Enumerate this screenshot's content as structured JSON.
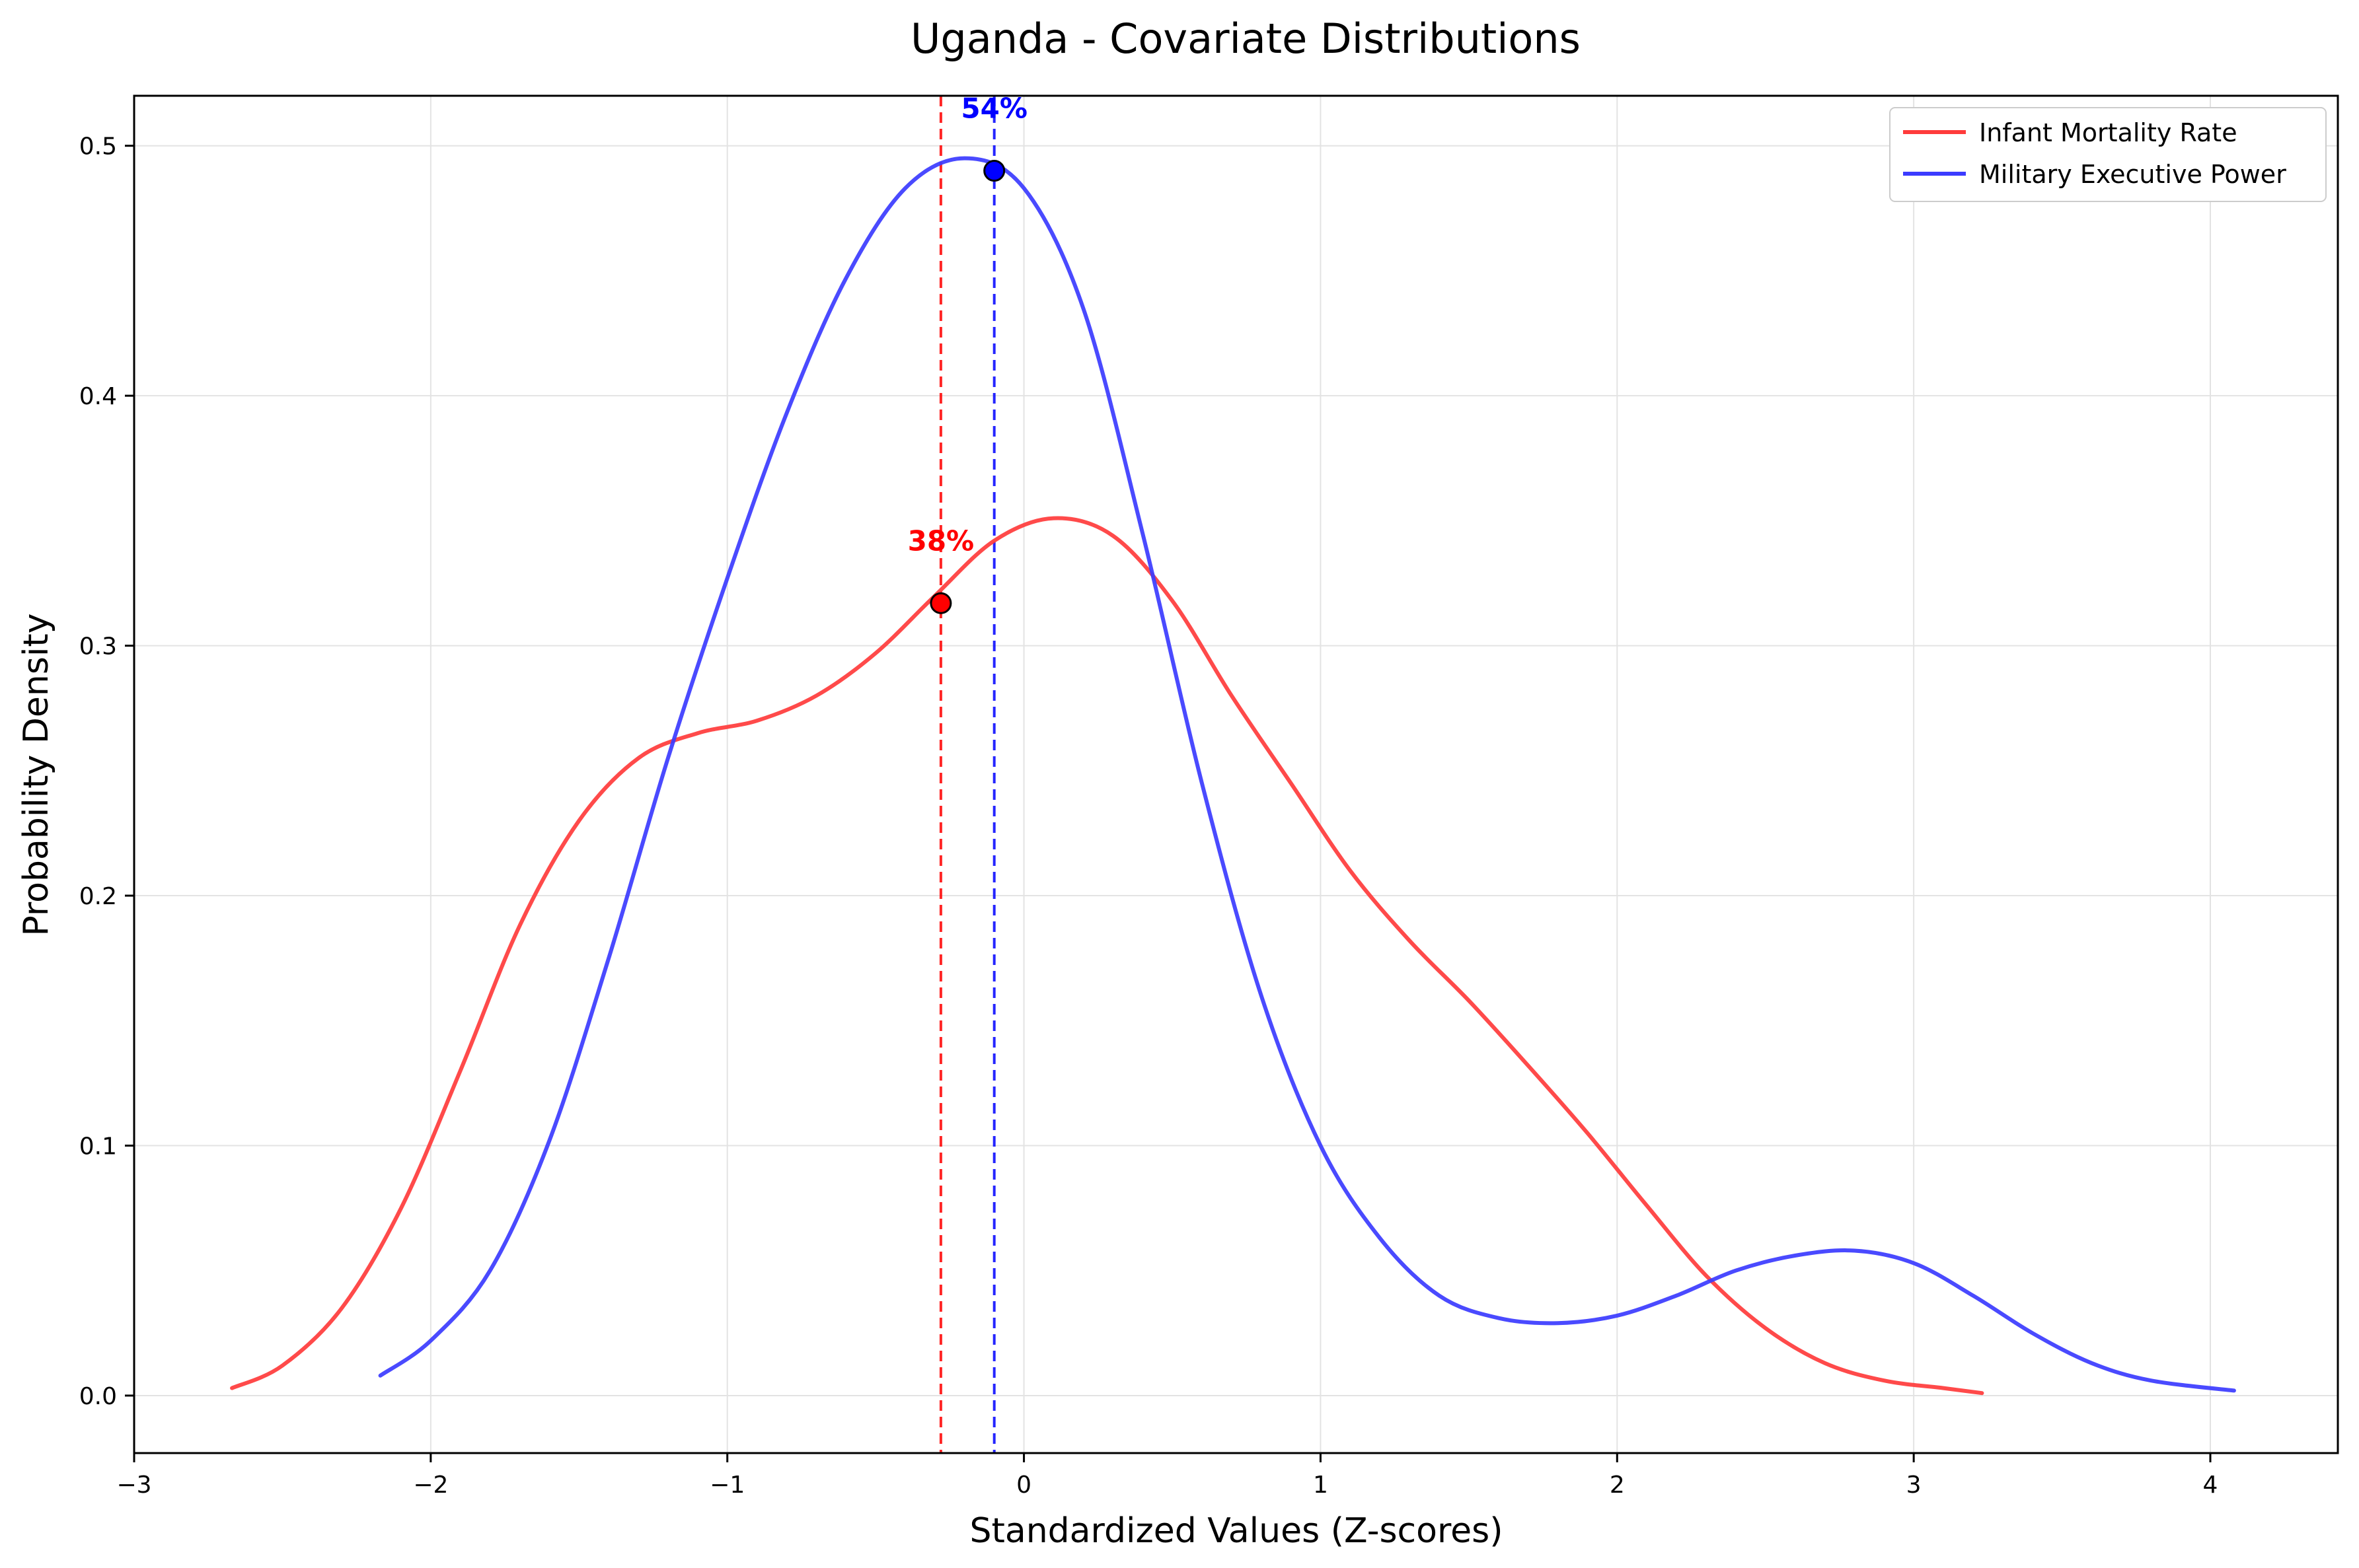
{
  "chart_data": {
    "type": "line",
    "title": "Uganda - Covariate Distributions",
    "xlabel": "Standardized Values (Z-scores)",
    "ylabel": "Probability Density",
    "xlim": [
      -3.0,
      4.43
    ],
    "ylim": [
      -0.023,
      0.52
    ],
    "xticks": [
      -3,
      -2,
      -1,
      0,
      1,
      2,
      3,
      4
    ],
    "xtick_labels": [
      "−3",
      "−2",
      "−1",
      "0",
      "1",
      "2",
      "3",
      "4"
    ],
    "yticks": [
      0.0,
      0.1,
      0.2,
      0.3,
      0.4,
      0.5
    ],
    "ytick_labels": [
      "0.0",
      "0.1",
      "0.2",
      "0.3",
      "0.4",
      "0.5"
    ],
    "grid": true,
    "legend_position": "top-right",
    "series": [
      {
        "name": "Infant Mortality Rate",
        "color": "#ff3b3b",
        "x": [
          -2.67,
          -2.5,
          -2.3,
          -2.1,
          -1.9,
          -1.7,
          -1.5,
          -1.3,
          -1.1,
          -0.9,
          -0.7,
          -0.5,
          -0.3,
          -0.1,
          0.1,
          0.3,
          0.5,
          0.7,
          0.9,
          1.1,
          1.3,
          1.5,
          1.7,
          1.9,
          2.1,
          2.3,
          2.5,
          2.7,
          2.9,
          3.1,
          3.23
        ],
        "y": [
          0.003,
          0.012,
          0.035,
          0.075,
          0.13,
          0.188,
          0.23,
          0.255,
          0.265,
          0.27,
          0.28,
          0.297,
          0.32,
          0.342,
          0.351,
          0.344,
          0.318,
          0.28,
          0.245,
          0.21,
          0.182,
          0.158,
          0.132,
          0.105,
          0.076,
          0.048,
          0.027,
          0.013,
          0.006,
          0.003,
          0.001
        ]
      },
      {
        "name": "Military Executive Power",
        "color": "#3b3bff",
        "x": [
          -2.17,
          -2.0,
          -1.8,
          -1.6,
          -1.4,
          -1.2,
          -1.0,
          -0.8,
          -0.6,
          -0.4,
          -0.2,
          0.0,
          0.2,
          0.4,
          0.6,
          0.8,
          1.0,
          1.2,
          1.4,
          1.6,
          1.8,
          2.0,
          2.2,
          2.4,
          2.6,
          2.8,
          3.0,
          3.2,
          3.4,
          3.6,
          3.8,
          4.08
        ],
        "y": [
          0.008,
          0.022,
          0.05,
          0.102,
          0.175,
          0.255,
          0.327,
          0.393,
          0.447,
          0.483,
          0.495,
          0.483,
          0.435,
          0.345,
          0.245,
          0.16,
          0.1,
          0.063,
          0.04,
          0.031,
          0.029,
          0.032,
          0.04,
          0.05,
          0.056,
          0.058,
          0.053,
          0.04,
          0.025,
          0.013,
          0.006,
          0.002
        ]
      }
    ],
    "markers": [
      {
        "series": "Infant Mortality Rate",
        "x": -0.28,
        "y": 0.317,
        "label": "38%",
        "color": "#ff0000"
      },
      {
        "series": "Military Executive Power",
        "x": -0.1,
        "y": 0.49,
        "label": "54%",
        "color": "#0000ff"
      }
    ]
  }
}
